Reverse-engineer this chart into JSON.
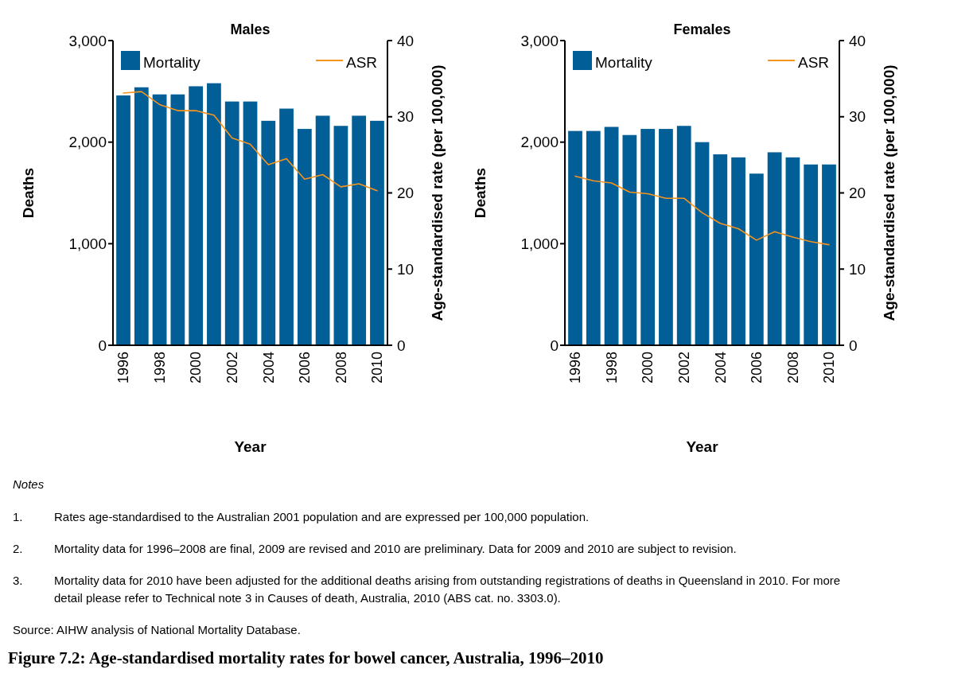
{
  "chart_data": [
    {
      "type": "bar",
      "title": "Males",
      "xlabel": "Year",
      "ylabel": "Deaths",
      "y2label": "Age-standardised rate (per 100,000)",
      "categories": [
        "1996",
        null,
        "1998",
        null,
        "2000",
        null,
        "2002",
        null,
        "2004",
        null,
        "2006",
        null,
        "2008",
        null,
        "2010"
      ],
      "series": [
        {
          "name": "Mortality",
          "color": "#025e96",
          "values": [
            2460,
            2540,
            2470,
            2470,
            2550,
            2580,
            2400,
            2400,
            2210,
            2330,
            2130,
            2260,
            2160,
            2260,
            2210
          ]
        },
        {
          "name": "ASR",
          "type": "line",
          "axis": "y2",
          "color": "#f7941d",
          "values": [
            33.1,
            33.3,
            31.6,
            30.8,
            30.8,
            30.2,
            27.2,
            26.4,
            23.7,
            24.5,
            21.8,
            22.4,
            20.8,
            21.2,
            20.3
          ]
        }
      ],
      "ylim": [
        0,
        3000
      ],
      "yticks": [
        0,
        {
          "value": 1000,
          "label": "1,000"
        },
        {
          "value": 2000,
          "label": "2,000"
        },
        {
          "value": 3000,
          "label": "3,000"
        }
      ],
      "y2lim": [
        0,
        40
      ],
      "y2ticks": [
        0,
        10,
        20,
        30,
        40
      ],
      "legend": "top",
      "grid": false,
      "annotations": [
        "Notes",
        "1. Rates age-standardised to the Australian 2001 population and are expressed per 100,000 population.",
        "2. Mortality data for 1996–2008 are final, 2009 are revised and 2010 are preliminary. Data for 2009 and 2010 are subject to revision.",
        "3. Mortality data for 2010 have been adjusted for the additional deaths arising from outstanding registrations of deaths in Queensland in 2010. For more detail please refer to Technical note 3 in Causes of death, Australia, 2010 (ABS cat. no. 3303.0).",
        "Source: AIHW analysis of National Mortality Database.",
        "Figure 7.2: Age-standardised mortality rates for bowel cancer, Australia, 1996–2010"
      ]
    },
    {
      "type": "bar",
      "title": "Females",
      "xlabel": "Year",
      "ylabel": "Deaths",
      "y2label": "Age-standardised rate (per 100,000)",
      "categories": [
        "1996",
        null,
        "1998",
        null,
        "2000",
        null,
        "2002",
        null,
        "2004",
        null,
        "2006",
        null,
        "2008",
        null,
        "2010"
      ],
      "series": [
        {
          "name": "Mortality",
          "color": "#025e96",
          "values": [
            2110,
            2110,
            2150,
            2070,
            2130,
            2130,
            2160,
            2000,
            1880,
            1850,
            1690,
            1900,
            1850,
            1780,
            1780
          ]
        },
        {
          "name": "ASR",
          "type": "line",
          "axis": "y2",
          "color": "#f7941d",
          "values": [
            22.2,
            21.6,
            21.3,
            20.1,
            19.9,
            19.3,
            19.3,
            17.4,
            16.0,
            15.3,
            13.8,
            14.9,
            14.2,
            13.6,
            13.2
          ]
        }
      ],
      "ylim": [
        0,
        3000
      ],
      "yticks": [
        0,
        {
          "value": 1000,
          "label": "1,000"
        },
        {
          "value": 2000,
          "label": "2,000"
        },
        {
          "value": 3000,
          "label": "3,000"
        }
      ],
      "y2lim": [
        0,
        40
      ],
      "y2ticks": [
        0,
        10,
        20,
        30,
        40
      ],
      "legend": "top",
      "grid": false
    }
  ]
}
